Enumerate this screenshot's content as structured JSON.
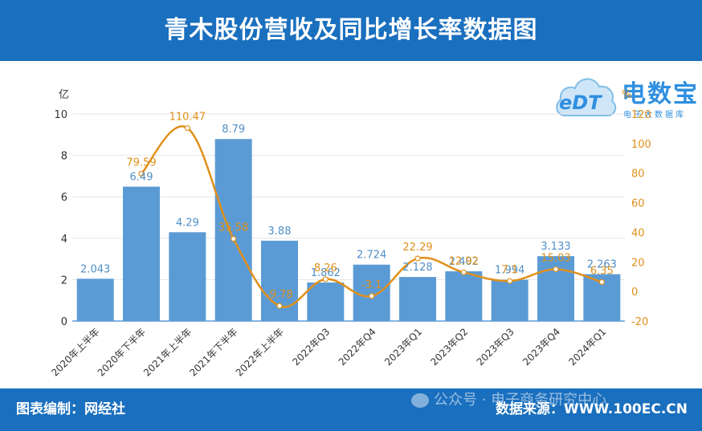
{
  "header": {
    "title": "青木股份营收及同比增长率数据图"
  },
  "footer": {
    "left": "图表编制：网经社",
    "right": "数据来源：WWW.100EC.CN",
    "watermark": "公众号 · 电子商务研究中心"
  },
  "logo": {
    "cn": "电数宝",
    "en": "eDT",
    "sub": "电子大数据库"
  },
  "colors": {
    "bar": "#5b9bd5",
    "line": "#e0901a",
    "header": "#1a6fbe"
  },
  "chart_data": {
    "type": "bar",
    "categories": [
      "2020年上半年",
      "2020年下半年",
      "2021年上半年",
      "2021年下半年",
      "2022年上半年",
      "2022年Q3",
      "2022年Q4",
      "2023年Q1",
      "2023年Q2",
      "2023年Q3",
      "2023年Q4",
      "2024年Q1"
    ],
    "series": [
      {
        "type": "bar",
        "axis": "left",
        "values": [
          2.043,
          6.49,
          4.29,
          8.79,
          3.88,
          1.862,
          2.724,
          2.128,
          2.402,
          1.994,
          3.133,
          2.263
        ],
        "labels": [
          "2.043",
          "6.49",
          "4.29",
          "8.79",
          "3.88",
          "1.862",
          "2.724",
          "2.128",
          "2.402",
          "1.994",
          "3.133",
          "2.263"
        ]
      },
      {
        "type": "line",
        "axis": "right",
        "values": [
          null,
          79.59,
          110.47,
          35.58,
          -9.78,
          8.26,
          -3.1,
          22.29,
          12.92,
          7.1,
          15.03,
          6.35
        ],
        "labels": [
          "",
          "79.59",
          "110.47",
          "35.58",
          "-9.78",
          "8.26",
          "-3.1",
          "22.29",
          "12.92",
          "7.1",
          "15.03",
          "6.35"
        ]
      }
    ],
    "ylabel": "亿",
    "y2label": "%",
    "ylim": [
      0,
      10
    ],
    "y2lim": [
      -20,
      120
    ],
    "yticks": [
      0,
      2,
      4,
      6,
      8,
      10
    ],
    "y2ticks": [
      -20,
      0,
      20,
      40,
      60,
      80,
      100,
      120
    ],
    "grid": true,
    "legend": "none"
  }
}
